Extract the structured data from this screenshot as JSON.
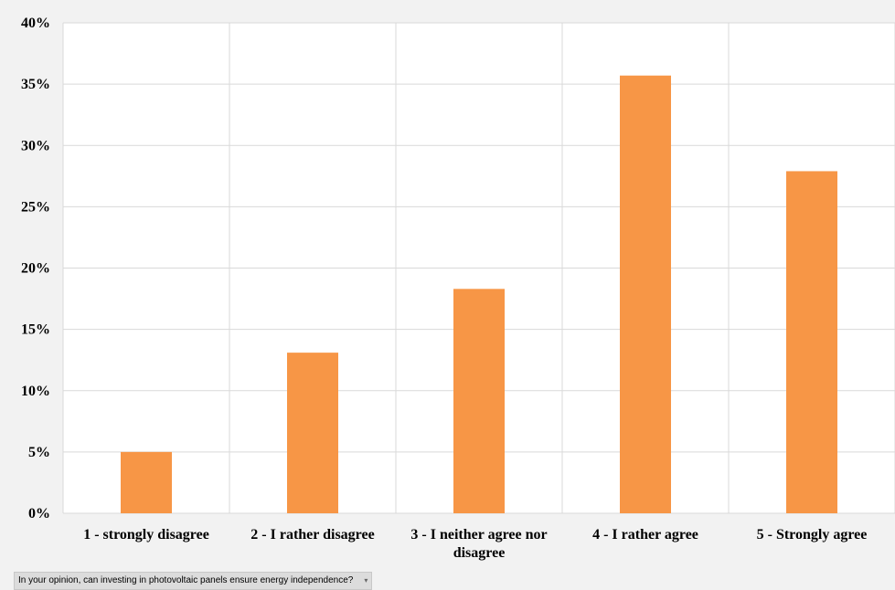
{
  "chart_data": {
    "type": "bar",
    "categories": [
      [
        "1 - strongly disagree"
      ],
      [
        "2 - I rather disagree"
      ],
      [
        "3 - I neither agree nor",
        "disagree"
      ],
      [
        "4 - I rather agree"
      ],
      [
        "5 - Strongly agree"
      ]
    ],
    "values": [
      5.0,
      13.1,
      18.3,
      35.7,
      27.9
    ],
    "yticks": [
      "0%",
      "5%",
      "10%",
      "15%",
      "20%",
      "25%",
      "30%",
      "35%",
      "40%"
    ],
    "ylim": [
      0,
      40
    ],
    "bar_color": "#f79646",
    "grid": true
  },
  "filter": {
    "label": "In your opinion, can investing in photovoltaic panels ensure energy independence?",
    "arrow": "▾"
  }
}
